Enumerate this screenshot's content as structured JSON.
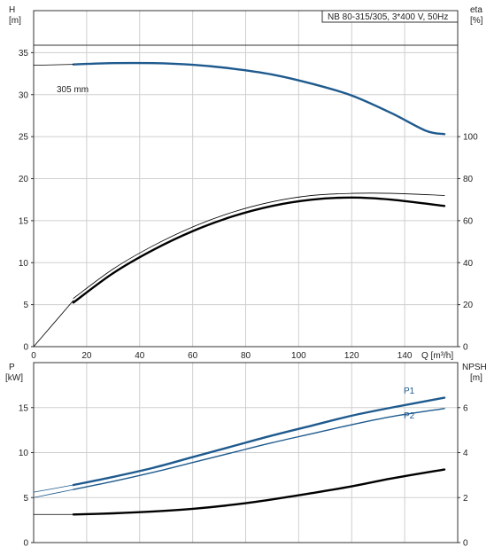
{
  "chart_data": [
    {
      "type": "line",
      "title": "NB 80-315/305, 3*400 V, 50Hz",
      "xlabel": "Q [m³/h]",
      "ylabel_left": [
        "H",
        "[m]"
      ],
      "ylabel_right": [
        "eta",
        "[%]"
      ],
      "xlim": [
        0,
        160
      ],
      "ylim_left": [
        0,
        40
      ],
      "ylim_right": [
        0,
        160
      ],
      "x_ticks": [
        0,
        20,
        40,
        60,
        80,
        100,
        120,
        140
      ],
      "y_ticks_left": [
        0,
        5,
        10,
        15,
        20,
        25,
        30,
        35
      ],
      "y_ticks_right": [
        0,
        20,
        40,
        60,
        80,
        100
      ],
      "grid": true,
      "colors": {
        "head": "#1e5a8e",
        "eta": "#000000"
      },
      "series": [
        {
          "name": "305 mm",
          "axis": "left",
          "style": "thick",
          "color": "#1e5a8e",
          "x": [
            15,
            30,
            45,
            60,
            75,
            90,
            105,
            120,
            135,
            148,
            155
          ],
          "y": [
            33.6,
            33.75,
            33.75,
            33.55,
            33.1,
            32.4,
            31.3,
            29.9,
            27.8,
            25.7,
            25.3
          ]
        },
        {
          "axis": "left",
          "style": "thin",
          "color": "#000000",
          "x": [
            0,
            15
          ],
          "y": [
            33.5,
            33.6
          ]
        },
        {
          "axis": "right",
          "style": "thin",
          "color": "#000000",
          "x": [
            15,
            30,
            45,
            60,
            75,
            90,
            105,
            120,
            135,
            155
          ],
          "y": [
            23,
            37,
            48,
            57,
            64,
            69,
            72,
            73,
            73,
            72
          ]
        },
        {
          "axis": "right",
          "style": "thick",
          "color": "#000000",
          "x": [
            15,
            30,
            45,
            60,
            75,
            90,
            105,
            120,
            135,
            155
          ],
          "y": [
            21,
            35,
            46,
            55,
            62,
            67,
            70,
            71,
            70,
            67
          ]
        },
        {
          "axis": "right",
          "style": "thin",
          "color": "#000000",
          "x": [
            0,
            15
          ],
          "y": [
            0,
            22
          ]
        }
      ]
    },
    {
      "type": "line",
      "xlabel": "",
      "ylabel_left": [
        "P",
        "[kW]"
      ],
      "ylabel_right": [
        "NPSH",
        "[m]"
      ],
      "xlim": [
        0,
        160
      ],
      "ylim_left": [
        0,
        20
      ],
      "ylim_right": [
        0,
        8
      ],
      "y_ticks_left": [
        0,
        5,
        10,
        15
      ],
      "y_ticks_right": [
        0,
        2,
        4,
        6
      ],
      "grid": true,
      "series": [
        {
          "name": "P1",
          "axis": "left",
          "style": "thick",
          "color": "#1e5a8e",
          "x": [
            15,
            30,
            45,
            60,
            75,
            90,
            105,
            120,
            135,
            155
          ],
          "y": [
            6.4,
            7.3,
            8.3,
            9.5,
            10.7,
            11.9,
            13.0,
            14.1,
            15.0,
            16.1
          ]
        },
        {
          "axis": "left",
          "style": "thin",
          "color": "#1e5a8e",
          "x": [
            0,
            15
          ],
          "y": [
            5.6,
            6.4
          ]
        },
        {
          "name": "P2",
          "axis": "left",
          "style": "normal",
          "color": "#1e5a8e",
          "x": [
            15,
            30,
            45,
            60,
            75,
            90,
            105,
            120,
            135,
            155
          ],
          "y": [
            5.9,
            6.8,
            7.8,
            8.9,
            10.0,
            11.1,
            12.1,
            13.1,
            14.0,
            14.9
          ]
        },
        {
          "axis": "left",
          "style": "thin",
          "color": "#1e5a8e",
          "x": [
            0,
            15
          ],
          "y": [
            5.0,
            5.9
          ]
        },
        {
          "axis": "right",
          "style": "thick",
          "color": "#000000",
          "x": [
            15,
            30,
            45,
            60,
            75,
            90,
            105,
            120,
            135,
            155
          ],
          "y": [
            1.25,
            1.3,
            1.38,
            1.5,
            1.68,
            1.92,
            2.2,
            2.5,
            2.85,
            3.25
          ]
        },
        {
          "axis": "right",
          "style": "thin",
          "color": "#000000",
          "x": [
            0,
            15
          ],
          "y": [
            1.25,
            1.25
          ]
        }
      ]
    }
  ]
}
